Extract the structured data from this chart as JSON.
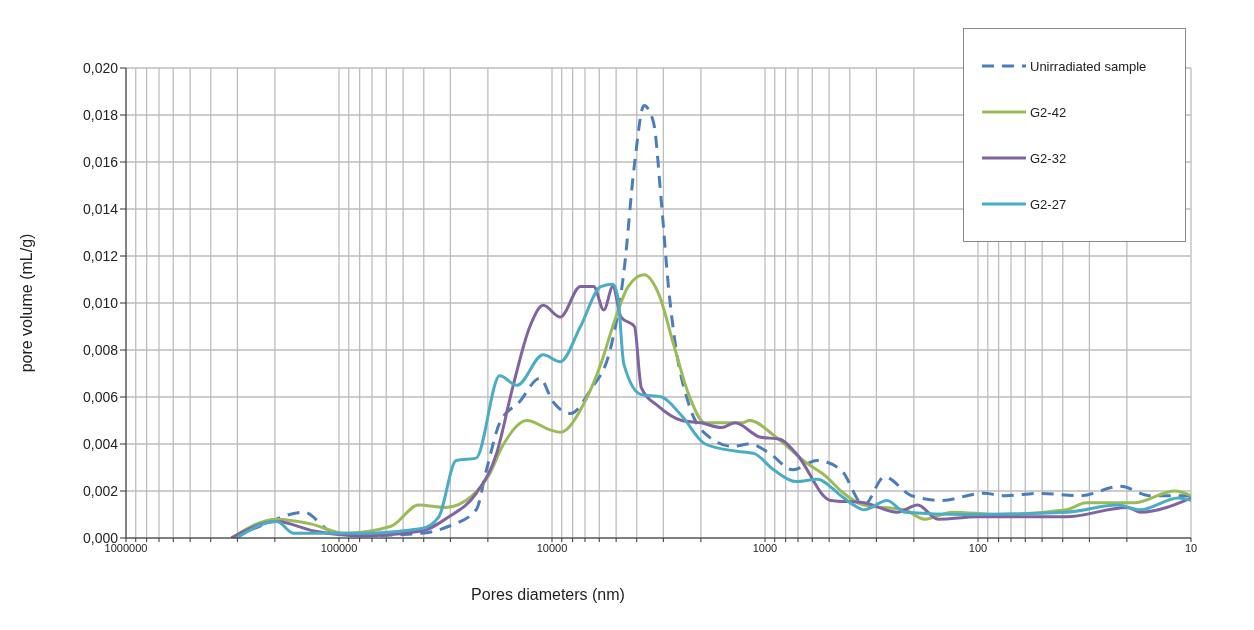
{
  "chart_data": {
    "type": "line",
    "xlabel": "Pores diameters (nm)",
    "ylabel": "pore volume (mL/g)",
    "log": "x",
    "grid": true,
    "legend": "top right",
    "xlim": [
      1000000,
      10
    ],
    "ylim": [
      0,
      0.02
    ],
    "xticks": [
      1000000,
      {
        "value": 900000,
        "label": null
      },
      {
        "value": 800000,
        "label": null
      },
      {
        "value": 700000,
        "label": null
      },
      {
        "value": 600000,
        "label": null
      },
      {
        "value": 500000,
        "label": null
      },
      {
        "value": 400000,
        "label": null
      },
      {
        "value": 300000,
        "label": null
      },
      {
        "value": 200000,
        "label": null
      },
      100000,
      {
        "value": 90000,
        "label": null
      },
      {
        "value": 80000,
        "label": null
      },
      {
        "value": 70000,
        "label": null
      },
      {
        "value": 60000,
        "label": null
      },
      {
        "value": 50000,
        "label": null
      },
      {
        "value": 40000,
        "label": null
      },
      {
        "value": 30000,
        "label": null
      },
      {
        "value": 20000,
        "label": null
      },
      10000,
      {
        "value": 9000,
        "label": null
      },
      {
        "value": 8000,
        "label": null
      },
      {
        "value": 7000,
        "label": null
      },
      {
        "value": 6000,
        "label": null
      },
      {
        "value": 5000,
        "label": null
      },
      {
        "value": 4000,
        "label": null
      },
      {
        "value": 3000,
        "label": null
      },
      {
        "value": 2000,
        "label": null
      },
      1000,
      {
        "value": 900,
        "label": null
      },
      {
        "value": 800,
        "label": null
      },
      {
        "value": 700,
        "label": null
      },
      {
        "value": 600,
        "label": null
      },
      {
        "value": 500,
        "label": null
      },
      {
        "value": 400,
        "label": null
      },
      {
        "value": 300,
        "label": null
      },
      {
        "value": 200,
        "label": null
      },
      100,
      {
        "value": 90,
        "label": null
      },
      {
        "value": 80,
        "label": null
      },
      {
        "value": 70,
        "label": null
      },
      {
        "value": 60,
        "label": null
      },
      {
        "value": 50,
        "label": null
      },
      {
        "value": 40,
        "label": null
      },
      {
        "value": 30,
        "label": null
      },
      {
        "value": 20,
        "label": null
      },
      10
    ],
    "yticks": [
      {
        "value": 0,
        "label": "0,000"
      },
      {
        "value": 0.002,
        "label": "0,002"
      },
      {
        "value": 0.004,
        "label": "0,004"
      },
      {
        "value": 0.006,
        "label": "0,006"
      },
      {
        "value": 0.008,
        "label": "0,008"
      },
      {
        "value": 0.01,
        "label": "0,010"
      },
      {
        "value": 0.012,
        "label": "0,012"
      },
      {
        "value": 0.014,
        "label": "0,014"
      },
      {
        "value": 0.016,
        "label": "0,016"
      },
      {
        "value": 0.018,
        "label": "0,018"
      },
      {
        "value": 0.02,
        "label": "0,020"
      }
    ],
    "series": [
      {
        "name": "Unirradiated sample",
        "color": "#4a7ebb",
        "line_style": "dashed",
        "x": [
          317000,
          236000,
          146000,
          110000,
          79000,
          41000,
          30500,
          22700,
          20300,
          17600,
          14200,
          11400,
          9900,
          8200,
          6600,
          5300,
          4600,
          4100,
          3700,
          3340,
          3060,
          2840,
          2660,
          2280,
          1830,
          1420,
          1180,
          950,
          740,
          570,
          440,
          343,
          275,
          205,
          148,
          95,
          74,
          52,
          33,
          21.5,
          15.5,
          10
        ],
        "values": [
          0,
          0.0005,
          0.0011,
          0.0003,
          0.0001,
          0.0002,
          0.0005,
          0.0012,
          0.0029,
          0.0049,
          0.0058,
          0.0068,
          0.0058,
          0.0053,
          0.0063,
          0.0081,
          0.0113,
          0.0159,
          0.0184,
          0.0177,
          0.0142,
          0.0107,
          0.0085,
          0.0057,
          0.0043,
          0.0039,
          0.004,
          0.0036,
          0.0029,
          0.0033,
          0.0029,
          0.0014,
          0.0026,
          0.0018,
          0.0016,
          0.0019,
          0.0018,
          0.0019,
          0.0018,
          0.0022,
          0.0018,
          0.0018
        ]
      },
      {
        "name": "G2-42",
        "color": "#9bbb59",
        "line_style": "solid",
        "x": [
          320000,
          196000,
          136000,
          94000,
          56900,
          42300,
          31500,
          23700,
          19700,
          17100,
          13100,
          10200,
          9150,
          7100,
          5900,
          5100,
          4390,
          3700,
          3160,
          2660,
          2280,
          1910,
          1280,
          1180,
          890,
          640,
          514,
          440,
          343,
          221,
          178,
          132,
          80,
          38.5,
          31,
          18.5,
          11.9,
          10
        ],
        "values": [
          0,
          0.0008,
          0.0006,
          0.0002,
          0.0005,
          0.0014,
          0.0013,
          0.0018,
          0.0027,
          0.0039,
          0.005,
          0.0046,
          0.0045,
          0.0057,
          0.0074,
          0.0092,
          0.0107,
          0.0112,
          0.0104,
          0.0081,
          0.0061,
          0.0049,
          0.0049,
          0.005,
          0.0043,
          0.0032,
          0.0026,
          0.002,
          0.0014,
          0.0012,
          0.0008,
          0.0011,
          0.001,
          0.0012,
          0.0015,
          0.0015,
          0.002,
          0.0018
        ]
      },
      {
        "name": "G2-32",
        "color": "#8064a2",
        "line_style": "solid",
        "x": [
          320000,
          196000,
          131000,
          79000,
          41000,
          30500,
          22700,
          18200,
          15300,
          12700,
          11000,
          9150,
          7350,
          6370,
          5710,
          5180,
          4740,
          4100,
          3810,
          3160,
          2460,
          2000,
          1600,
          1380,
          1060,
          850,
          715,
          492,
          343,
          239,
          192,
          154,
          100,
          38.5,
          19.9,
          17.3,
          10
        ],
        "values": [
          0,
          0.0007,
          0.0003,
          0.0001,
          0.0003,
          0.0009,
          0.0019,
          0.0036,
          0.0064,
          0.009,
          0.0099,
          0.0094,
          0.0107,
          0.0107,
          0.0097,
          0.0107,
          0.0094,
          0.009,
          0.0064,
          0.0056,
          0.005,
          0.0049,
          0.0047,
          0.0049,
          0.0043,
          0.0042,
          0.0036,
          0.0016,
          0.0015,
          0.0011,
          0.0014,
          0.0008,
          0.0009,
          0.0009,
          0.0013,
          0.0011,
          0.0017
        ]
      },
      {
        "name": "G2-27",
        "color": "#4bacc6",
        "line_style": "solid",
        "x": [
          303000,
          196000,
          163000,
          79000,
          41000,
          34000,
          28200,
          22700,
          17600,
          14600,
          11000,
          9150,
          7350,
          5900,
          5180,
          4900,
          4600,
          3810,
          3060,
          2460,
          1910,
          1380,
          1130,
          910,
          715,
          570,
          440,
          383,
          343,
          267,
          221,
          115,
          38.5,
          22.2,
          17.3,
          11.5,
          10
        ],
        "values": [
          0,
          0.0007,
          0.0002,
          0.0002,
          0.0004,
          0.0009,
          0.0033,
          0.0034,
          0.0069,
          0.0065,
          0.0078,
          0.0075,
          0.009,
          0.0107,
          0.0108,
          0.0102,
          0.0074,
          0.0061,
          0.006,
          0.0052,
          0.004,
          0.0037,
          0.0036,
          0.0029,
          0.0024,
          0.0025,
          0.0018,
          0.0014,
          0.0012,
          0.0016,
          0.0011,
          0.001,
          0.0011,
          0.0014,
          0.0012,
          0.0017,
          0.0016
        ]
      }
    ]
  }
}
